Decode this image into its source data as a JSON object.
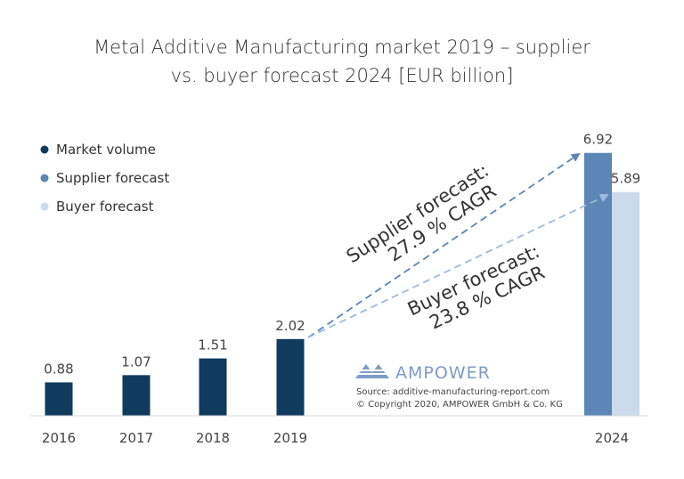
{
  "chart_data": {
    "type": "bar",
    "title_lines": [
      "Metal Additive Manufacturing market 2019 – supplier",
      "vs. buyer forecast 2024 [EUR billion]"
    ],
    "xlabel": "",
    "ylabel": "",
    "ylim": [
      0,
      7.5
    ],
    "categories": [
      "2016",
      "2017",
      "2018",
      "2019",
      "2024"
    ],
    "series": [
      {
        "name": "Market volume",
        "color": "#0f3b5f",
        "values": [
          0.88,
          1.07,
          1.51,
          2.02,
          null
        ]
      },
      {
        "name": "Supplier forecast",
        "color": "#5b86b6",
        "values": [
          null,
          null,
          null,
          null,
          6.92
        ]
      },
      {
        "name": "Buyer forecast",
        "color": "#cbdaed",
        "values": [
          null,
          null,
          null,
          null,
          5.89
        ]
      }
    ],
    "value_labels": [
      "0.88",
      "1.07",
      "1.51",
      "2.02",
      "6.92",
      "5.89"
    ],
    "legend_position": "top-left",
    "grid": false,
    "annotations": {
      "supplier_line1": "Supplier forecast:",
      "supplier_line2": "27.9 % CAGR",
      "buyer_line1": "Buyer forecast:",
      "buyer_line2": "23.8 % CAGR"
    }
  },
  "branding": {
    "name": "AMPOWER",
    "source": "Source: additive-manufacturing-report.com",
    "copyright": "© Copyright 2020, AMPOWER GmbH & Co. KG"
  }
}
